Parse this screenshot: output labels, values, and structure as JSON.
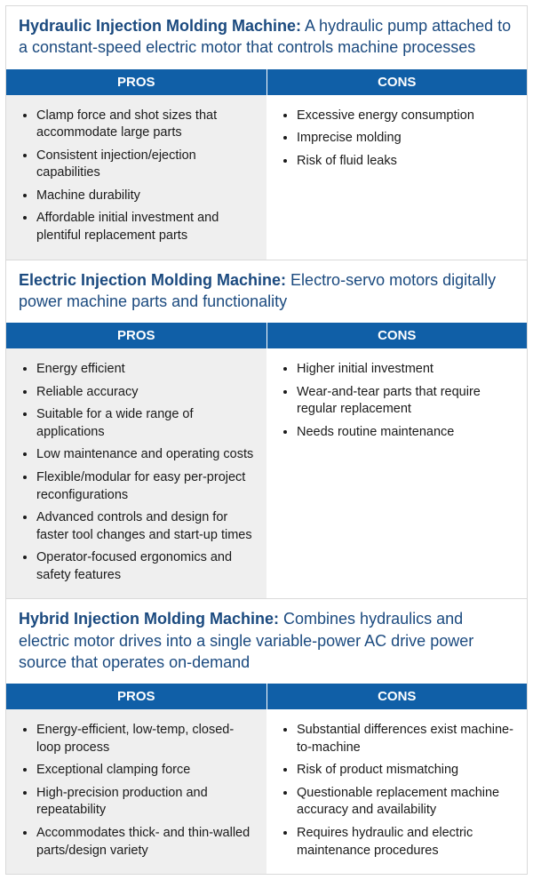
{
  "colors": {
    "header_bg": "#105fa7",
    "header_text": "#ffffff",
    "title_text": "#1b4a7f",
    "pros_bg": "#efefef",
    "cons_bg": "#ffffff",
    "body_text": "#1a1a1a",
    "border": "#d9d9d9"
  },
  "column_labels": {
    "pros": "PROS",
    "cons": "CONS"
  },
  "sections": [
    {
      "title": "Hydraulic Injection Molding Machine:",
      "desc": " A hydraulic pump attached to a constant-speed electric motor that controls machine processes",
      "pros": [
        "Clamp force and shot sizes that accommodate large parts",
        "Consistent injection/ejection capabilities",
        "Machine durability",
        "Affordable initial investment and plentiful replacement parts"
      ],
      "cons": [
        "Excessive energy consumption",
        "Imprecise molding",
        "Risk of fluid leaks"
      ]
    },
    {
      "title": "Electric Injection Molding Machine:",
      "desc": " Electro-servo motors digitally power machine parts and functionality",
      "pros": [
        "Energy efficient",
        "Reliable accuracy",
        "Suitable for a wide range of applications",
        "Low maintenance and operating costs",
        "Flexible/modular for easy per-project reconfigurations",
        "Advanced controls and design for faster tool changes and start-up times",
        "Operator-focused ergonomics and safety features"
      ],
      "cons": [
        "Higher initial investment",
        "Wear-and-tear parts that require regular replacement",
        "Needs routine maintenance"
      ]
    },
    {
      "title": "Hybrid Injection Molding Machine:",
      "desc": " Combines hydraulics and electric motor drives into a single variable-power AC drive power source that operates on-demand",
      "pros": [
        "Energy-efficient, low-temp, closed-loop process",
        "Exceptional clamping force",
        "High-precision production and repeatability",
        "Accommodates thick- and thin-walled parts/design variety"
      ],
      "cons": [
        "Substantial differences exist machine-to-machine",
        "Risk of product mismatching",
        "Questionable replacement machine accuracy and availability",
        "Requires hydraulic and electric maintenance procedures"
      ]
    }
  ]
}
